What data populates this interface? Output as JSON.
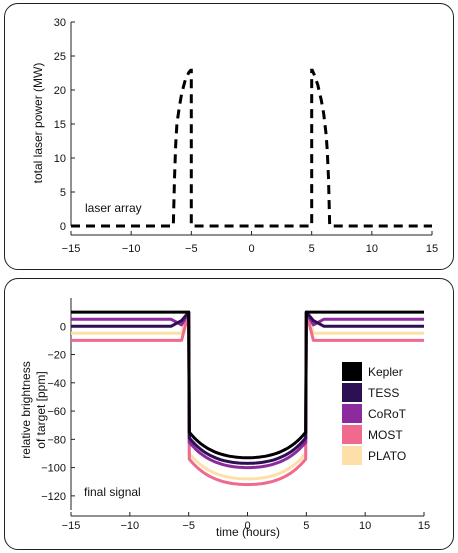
{
  "chart_data": [
    {
      "type": "line",
      "ylabel": "total laser power (MW)",
      "xlabel": "",
      "annotation": "laser array",
      "xlim": [
        -15,
        15
      ],
      "ylim": [
        0,
        30
      ],
      "xticks": [
        -15,
        -10,
        -5,
        0,
        5,
        10,
        15
      ],
      "yticks": [
        0,
        5,
        10,
        15,
        20,
        25,
        30
      ],
      "series": [
        {
          "color": "#000000",
          "style": "dashed",
          "x": [
            -15,
            -6.5,
            -6.4,
            -6.3,
            -6.2,
            -6.0,
            -5.8,
            -5.5,
            -5.2,
            -5.05,
            -5.0,
            -5.0,
            5.0,
            5.0,
            5.05,
            5.2,
            5.5,
            5.8,
            6.0,
            6.2,
            6.3,
            6.4,
            6.5,
            15
          ],
          "y": [
            0,
            0,
            7,
            12,
            15,
            17.5,
            19.5,
            21.5,
            22.6,
            22.9,
            22.9,
            0,
            0,
            22.9,
            22.9,
            22.3,
            20.8,
            18.5,
            16.5,
            13.5,
            11,
            7,
            0,
            0
          ]
        }
      ]
    },
    {
      "type": "line",
      "ylabel": "relative brightness of target [ppm]",
      "xlabel": "time (hours)",
      "annotation": "final signal",
      "xlim": [
        -15,
        15
      ],
      "ylim": [
        -130,
        20
      ],
      "xticks": [
        -15,
        -10,
        -5,
        0,
        5,
        10,
        15
      ],
      "yticks": [
        0,
        -20,
        -40,
        -60,
        -80,
        -100,
        -120
      ],
      "legend_position": "right",
      "series": [
        {
          "name": "Kepler",
          "color": "#000000",
          "baseline": 10,
          "bottom": -93
        },
        {
          "name": "TESS",
          "color": "#2d0f54",
          "baseline": 0,
          "bottom": -97
        },
        {
          "name": "CoRoT",
          "color": "#8c2a9e",
          "baseline": 5,
          "bottom": -100
        },
        {
          "name": "MOST",
          "color": "#ef6a8c",
          "baseline": -10,
          "bottom": -112
        },
        {
          "name": "PLATO",
          "color": "#fde0a8",
          "baseline": -5,
          "bottom": -108
        }
      ]
    }
  ]
}
